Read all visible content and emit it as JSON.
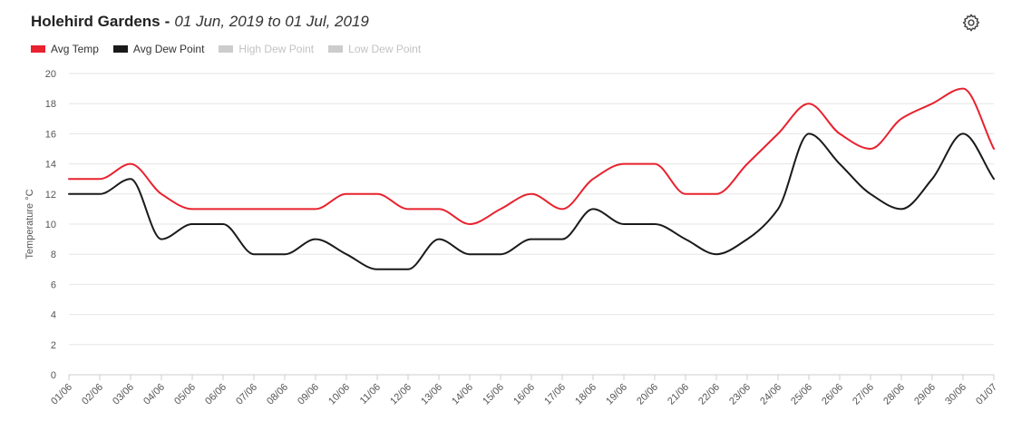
{
  "header": {
    "title": "Holehird Gardens",
    "separator": "-",
    "range": "01 Jun, 2019 to 01 Jul, 2019",
    "settings_icon": "gear-icon"
  },
  "legend": [
    {
      "name": "Avg Temp",
      "color": "#e8222f",
      "enabled": true
    },
    {
      "name": "Avg Dew Point",
      "color": "#1a1a1a",
      "enabled": true
    },
    {
      "name": "High Dew Point",
      "color": "#cccccc",
      "enabled": false
    },
    {
      "name": "Low Dew Point",
      "color": "#cccccc",
      "enabled": false
    }
  ],
  "chart_data": {
    "type": "line",
    "title": "Holehird Gardens - 01 Jun, 2019 to 01 Jul, 2019",
    "xlabel": "",
    "ylabel": "Temperature °C",
    "ylim": [
      0,
      20
    ],
    "yticks": [
      0,
      2,
      4,
      6,
      8,
      10,
      12,
      14,
      16,
      18,
      20
    ],
    "x_ticks": [
      "01/06",
      "02/06",
      "03/06",
      "04/06",
      "05/06",
      "06/06",
      "07/06",
      "08/06",
      "09/06",
      "10/06",
      "11/06",
      "12/06",
      "13/06",
      "14/06",
      "15/06",
      "16/06",
      "17/06",
      "18/06",
      "19/06",
      "20/06",
      "21/06",
      "22/06",
      "23/06",
      "24/06",
      "25/06",
      "26/06",
      "27/06",
      "28/06",
      "29/06",
      "30/06",
      "01/07"
    ],
    "grid": "horizontal",
    "legend_position": "top-left",
    "series": [
      {
        "name": "Avg Temp",
        "color": "#e8222f",
        "values": [
          13,
          13,
          14,
          12,
          11,
          11,
          11,
          11,
          11,
          12,
          12,
          11,
          11,
          10,
          11,
          12,
          11,
          13,
          14,
          14,
          12,
          12,
          14,
          16,
          18,
          16,
          15,
          17,
          18,
          19,
          15
        ]
      },
      {
        "name": "Avg Dew Point",
        "color": "#1a1a1a",
        "values": [
          12,
          12,
          13,
          9,
          10,
          10,
          8,
          8,
          9,
          8,
          7,
          7,
          9,
          8,
          8,
          9,
          9,
          11,
          10,
          10,
          9,
          8,
          9,
          11,
          16,
          14,
          12,
          11,
          13,
          16,
          13
        ]
      }
    ]
  }
}
